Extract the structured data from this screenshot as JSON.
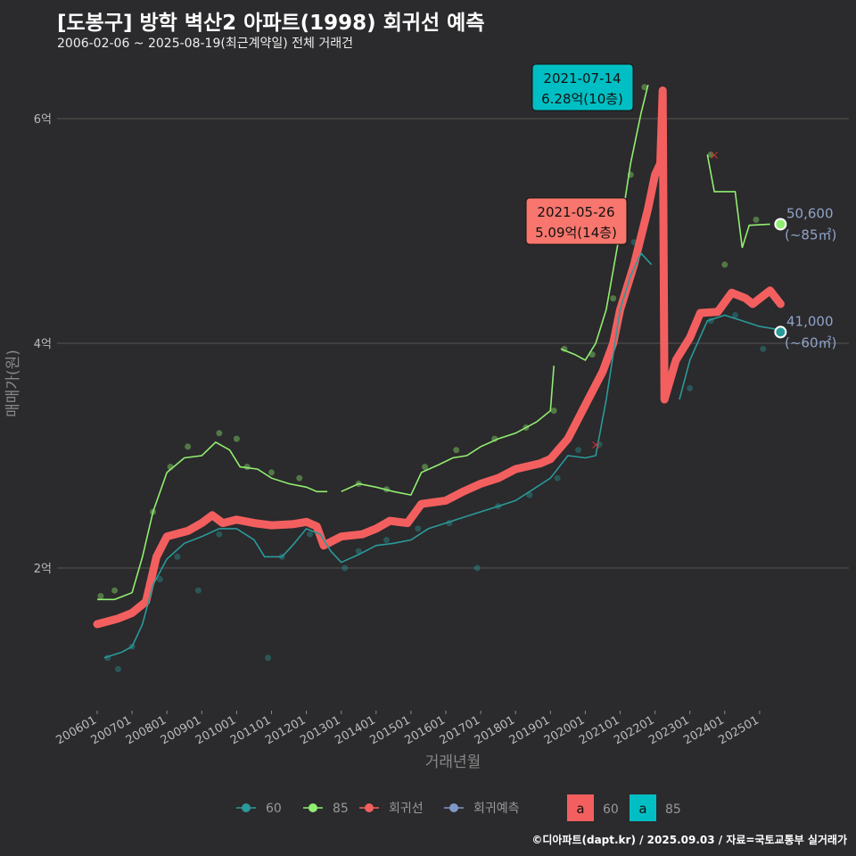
{
  "header": {
    "title": "[도봉구] 방학 벽산2 아파트(1998) 회귀선 예측",
    "subtitle": "2006-02-06 ~ 2025-08-19(최근계약일) 전체 거래건"
  },
  "caption": "©디아파트(dapt.kr) / 2025.09.03 / 자료=국토교통부 실거래가",
  "chart_data": {
    "type": "line",
    "xlabel": "거래년월",
    "ylabel": "매매가(원)",
    "x_ticks": [
      "200601",
      "200701",
      "200801",
      "200901",
      "201001",
      "201101",
      "201201",
      "201301",
      "201401",
      "201501",
      "201601",
      "201701",
      "201801",
      "201901",
      "202001",
      "202101",
      "202201",
      "202301",
      "202401",
      "202501"
    ],
    "y_ticks": [
      {
        "v": 2,
        "label": "2억"
      },
      {
        "v": 4,
        "label": "4억"
      },
      {
        "v": 6,
        "label": "6억"
      }
    ],
    "xlim": [
      2005.6,
      2026.3
    ],
    "ylim": [
      0.8,
      6.6
    ],
    "colors": {
      "60": "#2a9a9a",
      "85": "#90ee70",
      "regression": "#f35f5f",
      "forecast": "#7f98c8"
    },
    "series": [
      {
        "name": "회귀선",
        "key": "regression",
        "points": [
          [
            2006.0,
            1.5
          ],
          [
            2006.6,
            1.55
          ],
          [
            2007.0,
            1.6
          ],
          [
            2007.4,
            1.7
          ],
          [
            2007.7,
            2.1
          ],
          [
            2008.0,
            2.28
          ],
          [
            2008.6,
            2.33
          ],
          [
            2009.0,
            2.4
          ],
          [
            2009.3,
            2.47
          ],
          [
            2009.6,
            2.4
          ],
          [
            2010.0,
            2.43
          ],
          [
            2010.5,
            2.4
          ],
          [
            2011.0,
            2.38
          ],
          [
            2011.6,
            2.39
          ],
          [
            2012.0,
            2.41
          ],
          [
            2012.3,
            2.37
          ],
          [
            2012.5,
            2.2
          ],
          [
            2013.0,
            2.28
          ],
          [
            2013.6,
            2.3
          ],
          [
            2014.0,
            2.35
          ],
          [
            2014.4,
            2.42
          ],
          [
            2014.9,
            2.4
          ],
          [
            2015.3,
            2.57
          ],
          [
            2016.0,
            2.6
          ],
          [
            2016.5,
            2.68
          ],
          [
            2017.0,
            2.75
          ],
          [
            2017.5,
            2.8
          ],
          [
            2018.0,
            2.88
          ],
          [
            2018.7,
            2.93
          ],
          [
            2019.0,
            2.97
          ],
          [
            2019.5,
            3.15
          ],
          [
            2020.0,
            3.45
          ],
          [
            2020.5,
            3.75
          ],
          [
            2020.8,
            4.0
          ],
          [
            2021.0,
            4.3
          ],
          [
            2021.4,
            4.7
          ],
          [
            2021.8,
            5.2
          ],
          [
            2022.0,
            5.5
          ],
          [
            2022.15,
            5.6
          ],
          [
            2022.22,
            6.25
          ],
          [
            2022.27,
            3.5
          ],
          [
            2022.6,
            3.85
          ],
          [
            2023.0,
            4.05
          ],
          [
            2023.3,
            4.27
          ],
          [
            2023.8,
            4.28
          ],
          [
            2024.2,
            4.45
          ],
          [
            2024.6,
            4.4
          ],
          [
            2024.8,
            4.35
          ],
          [
            2025.3,
            4.47
          ],
          [
            2025.6,
            4.35
          ]
        ]
      },
      {
        "name": "85",
        "key": "85",
        "segments": [
          [
            [
              2006.0,
              1.72
            ],
            [
              2006.5,
              1.72
            ],
            [
              2007.0,
              1.78
            ],
            [
              2007.3,
              2.1
            ],
            [
              2007.6,
              2.5
            ],
            [
              2008.0,
              2.85
            ],
            [
              2008.5,
              2.98
            ],
            [
              2009.0,
              3.0
            ],
            [
              2009.4,
              3.12
            ],
            [
              2009.8,
              3.05
            ],
            [
              2010.1,
              2.9
            ],
            [
              2010.6,
              2.88
            ],
            [
              2011.0,
              2.8
            ],
            [
              2011.5,
              2.75
            ],
            [
              2012.0,
              2.72
            ],
            [
              2012.3,
              2.68
            ],
            [
              2012.6,
              2.68
            ]
          ],
          [
            [
              2013.0,
              2.68
            ],
            [
              2013.5,
              2.75
            ],
            [
              2014.0,
              2.72
            ],
            [
              2014.5,
              2.68
            ],
            [
              2015.0,
              2.65
            ],
            [
              2015.3,
              2.85
            ],
            [
              2015.8,
              2.92
            ],
            [
              2016.2,
              2.98
            ],
            [
              2016.6,
              3.0
            ],
            [
              2017.0,
              3.08
            ],
            [
              2017.5,
              3.15
            ],
            [
              2018.0,
              3.2
            ],
            [
              2018.6,
              3.3
            ],
            [
              2019.0,
              3.4
            ],
            [
              2019.1,
              3.8
            ]
          ],
          [
            [
              2019.3,
              3.95
            ],
            [
              2019.7,
              3.9
            ],
            [
              2020.0,
              3.85
            ],
            [
              2020.3,
              4.0
            ],
            [
              2020.6,
              4.3
            ],
            [
              2021.0,
              5.0
            ],
            [
              2021.3,
              5.6
            ],
            [
              2021.6,
              6.05
            ],
            [
              2021.8,
              6.3
            ]
          ],
          [
            [
              2023.5,
              5.68
            ],
            [
              2023.7,
              5.35
            ],
            [
              2024.3,
              5.35
            ],
            [
              2024.5,
              4.85
            ],
            [
              2024.7,
              5.05
            ],
            [
              2025.3,
              5.06
            ]
          ]
        ]
      },
      {
        "name": "60",
        "key": "60",
        "segments": [
          [
            [
              2006.2,
              1.2
            ],
            [
              2006.7,
              1.25
            ],
            [
              2007.0,
              1.3
            ],
            [
              2007.3,
              1.5
            ],
            [
              2007.6,
              1.85
            ],
            [
              2008.0,
              2.08
            ],
            [
              2008.5,
              2.22
            ],
            [
              2009.0,
              2.28
            ],
            [
              2009.5,
              2.35
            ],
            [
              2010.0,
              2.35
            ],
            [
              2010.5,
              2.25
            ],
            [
              2010.8,
              2.1
            ],
            [
              2011.3,
              2.1
            ],
            [
              2011.6,
              2.2
            ],
            [
              2012.0,
              2.35
            ],
            [
              2012.4,
              2.3
            ],
            [
              2012.7,
              2.15
            ],
            [
              2013.0,
              2.05
            ],
            [
              2013.5,
              2.12
            ],
            [
              2014.0,
              2.2
            ],
            [
              2014.5,
              2.22
            ],
            [
              2015.0,
              2.25
            ],
            [
              2015.5,
              2.35
            ],
            [
              2016.0,
              2.4
            ],
            [
              2016.5,
              2.45
            ],
            [
              2017.0,
              2.5
            ],
            [
              2017.5,
              2.55
            ],
            [
              2018.0,
              2.6
            ],
            [
              2018.5,
              2.7
            ],
            [
              2019.0,
              2.8
            ],
            [
              2019.5,
              3.0
            ],
            [
              2020.0,
              2.98
            ],
            [
              2020.3,
              3.0
            ],
            [
              2020.6,
              3.5
            ],
            [
              2021.0,
              4.3
            ],
            [
              2021.3,
              4.6
            ],
            [
              2021.6,
              4.8
            ],
            [
              2021.9,
              4.7
            ]
          ],
          [
            [
              2022.7,
              3.5
            ],
            [
              2023.0,
              3.85
            ],
            [
              2023.5,
              4.2
            ],
            [
              2024.0,
              4.25
            ],
            [
              2024.5,
              4.2
            ],
            [
              2025.0,
              4.15
            ],
            [
              2025.6,
              4.12
            ]
          ]
        ]
      }
    ],
    "scatter": {
      "85": [
        [
          2006.1,
          1.75
        ],
        [
          2006.5,
          1.8
        ],
        [
          2007.6,
          2.5
        ],
        [
          2008.1,
          2.9
        ],
        [
          2008.6,
          3.08
        ],
        [
          2009.5,
          3.2
        ],
        [
          2010.0,
          3.15
        ],
        [
          2010.3,
          2.9
        ],
        [
          2011.0,
          2.85
        ],
        [
          2011.8,
          2.8
        ],
        [
          2013.5,
          2.75
        ],
        [
          2014.3,
          2.7
        ],
        [
          2015.4,
          2.9
        ],
        [
          2016.3,
          3.05
        ],
        [
          2017.4,
          3.15
        ],
        [
          2018.3,
          3.25
        ],
        [
          2019.1,
          3.4
        ],
        [
          2019.4,
          3.95
        ],
        [
          2020.2,
          3.9
        ],
        [
          2020.8,
          4.4
        ],
        [
          2021.3,
          5.5
        ],
        [
          2021.7,
          6.28
        ],
        [
          2023.6,
          5.68
        ],
        [
          2024.0,
          4.7
        ],
        [
          2024.9,
          5.1
        ]
      ],
      "60": [
        [
          2006.3,
          1.2
        ],
        [
          2006.6,
          1.1
        ],
        [
          2007.0,
          1.3
        ],
        [
          2007.8,
          1.9
        ],
        [
          2008.3,
          2.1
        ],
        [
          2008.9,
          1.8
        ],
        [
          2009.5,
          2.3
        ],
        [
          2010.4,
          2.4
        ],
        [
          2010.9,
          1.2
        ],
        [
          2011.3,
          2.1
        ],
        [
          2012.1,
          2.3
        ],
        [
          2013.1,
          2.0
        ],
        [
          2013.5,
          2.15
        ],
        [
          2014.3,
          2.25
        ],
        [
          2015.2,
          2.35
        ],
        [
          2016.1,
          2.4
        ],
        [
          2016.9,
          2.0
        ],
        [
          2017.5,
          2.55
        ],
        [
          2018.4,
          2.65
        ],
        [
          2019.2,
          2.8
        ],
        [
          2019.8,
          3.05
        ],
        [
          2020.4,
          3.1
        ],
        [
          2021.0,
          4.3
        ],
        [
          2021.4,
          4.9
        ],
        [
          2023.0,
          3.6
        ],
        [
          2023.6,
          4.2
        ],
        [
          2024.3,
          4.25
        ],
        [
          2025.1,
          3.95
        ]
      ]
    },
    "endpoints": [
      {
        "key": "85",
        "x": 2025.6,
        "y": 5.06,
        "value": "50,600",
        "area": "(~85㎡)"
      },
      {
        "key": "60",
        "x": 2025.6,
        "y": 4.1,
        "value": "41,000",
        "area": "(~60㎡)"
      }
    ],
    "annotations": [
      {
        "date": "2021-07-14",
        "text": "6.28억(10층)",
        "color": "#00bfc4"
      },
      {
        "date": "2021-05-26",
        "text": "5.09억(14층)",
        "color": "#f8766d"
      }
    ],
    "legend": {
      "items": [
        "60",
        "85",
        "회귀선",
        "회귀예측"
      ],
      "fill_items": [
        "60",
        "85"
      ],
      "fill_glyph": "a"
    }
  }
}
